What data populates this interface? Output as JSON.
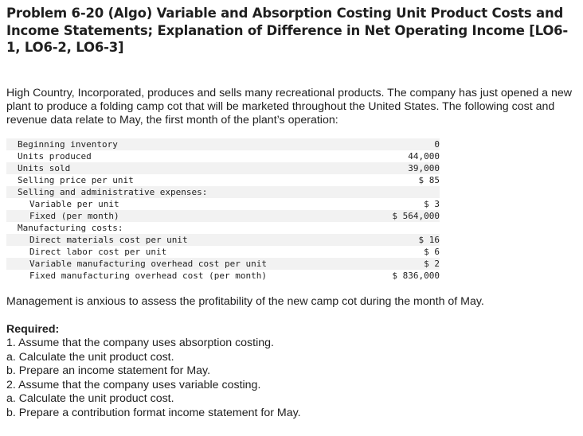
{
  "title": "Problem 6-20 (Algo) Variable and Absorption Costing Unit Product Costs and Income Statements; Explanation of Difference in Net Operating Income [LO6-1, LO6-2, LO6-3]",
  "intro": "High Country, Incorporated, produces and sells many recreational products. The company has just opened a new plant to produce a folding camp cot that will be marketed throughout the United States. The following cost and revenue data relate to May, the first month of the plant’s operation:",
  "table": {
    "rows": [
      {
        "label": "Beginning inventory",
        "value": "0",
        "indent": 0
      },
      {
        "label": "Units produced",
        "value": "44,000",
        "indent": 0
      },
      {
        "label": "Units sold",
        "value": "39,000",
        "indent": 0
      },
      {
        "label": "Selling price per unit",
        "value": "$ 85",
        "indent": 0
      },
      {
        "label": "Selling and administrative expenses:",
        "value": "",
        "indent": 0
      },
      {
        "label": "Variable per unit",
        "value": "$ 3",
        "indent": 1
      },
      {
        "label": "Fixed (per month)",
        "value": "$ 564,000",
        "indent": 1
      },
      {
        "label": "Manufacturing costs:",
        "value": "",
        "indent": 0
      },
      {
        "label": "Direct materials cost per unit",
        "value": "$ 16",
        "indent": 1
      },
      {
        "label": "Direct labor cost per unit",
        "value": "$ 6",
        "indent": 1
      },
      {
        "label": "Variable manufacturing overhead cost per unit",
        "value": "$ 2",
        "indent": 1
      },
      {
        "label": "Fixed manufacturing overhead cost (per month)",
        "value": "$ 836,000",
        "indent": 1
      }
    ]
  },
  "management": "Management is anxious to assess the profitability of the new camp cot during the month of May.",
  "required": {
    "heading": "Required:",
    "items": [
      "1. Assume that the company uses absorption costing.",
      "a. Calculate the unit product cost.",
      "b. Prepare an income statement for May.",
      "2. Assume that the company uses variable costing.",
      "a. Calculate the unit product cost.",
      "b. Prepare a contribution format income statement for May."
    ]
  }
}
